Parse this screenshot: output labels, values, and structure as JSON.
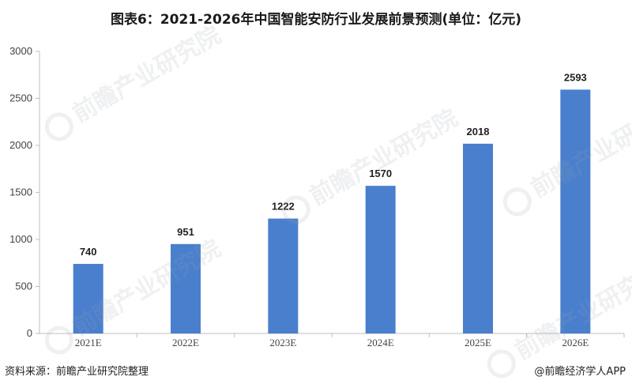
{
  "chart_data": {
    "type": "bar",
    "title": "图表6：2021-2026年中国智能安防行业发展前景预测(单位：亿元)",
    "categories": [
      "2021E",
      "2022E",
      "2023E",
      "2024E",
      "2025E",
      "2026E"
    ],
    "values": [
      740,
      951,
      1222,
      1570,
      2018,
      2593
    ],
    "data_labels": [
      "740",
      "951",
      "1222",
      "1570",
      "2018",
      "2593"
    ],
    "ylim": [
      0,
      3000
    ],
    "y_ticks": [
      "0",
      "500",
      "1000",
      "1500",
      "2000",
      "2500",
      "3000"
    ],
    "xlabel": "",
    "ylabel": "",
    "grid": false,
    "bar_color": "#4a7fce"
  },
  "footer": {
    "source": "资料来源：前瞻产业研究院整理",
    "credit": "@前瞻经济学人APP"
  },
  "watermark_text": "前瞻产业研究院"
}
